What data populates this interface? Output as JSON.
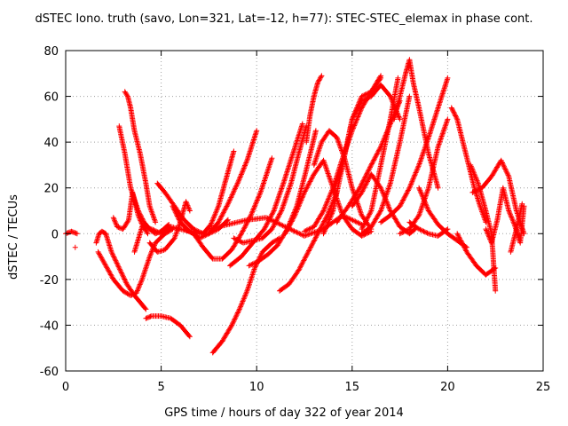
{
  "chart_data": {
    "type": "scatter",
    "title": "dSTEC Iono. truth (savo, Lon=321, Lat=-12, h=77): STEC-STEC_elemax in phase cont.",
    "xlabel": "GPS time / hours of day 322 of year 2014",
    "ylabel": "dSTEC  / TECUs",
    "xlim": [
      0,
      25
    ],
    "ylim": [
      -60,
      80
    ],
    "xticks": [
      0,
      5,
      10,
      15,
      20,
      25
    ],
    "yticks": [
      -60,
      -40,
      -20,
      0,
      20,
      40,
      60,
      80
    ],
    "grid": true,
    "marker": "+",
    "color": "#ff0000",
    "series": [
      {
        "x": [
          0.0,
          0.3,
          0.6
        ],
        "y": [
          0,
          1,
          0
        ]
      },
      {
        "x": [
          0.5
        ],
        "y": [
          -6
        ]
      },
      {
        "x": [
          1.6,
          1.75,
          1.9,
          2.1,
          2.4,
          2.8,
          3.2,
          3.6,
          3.9,
          4.2
        ],
        "y": [
          -4,
          0,
          1,
          0,
          -8,
          -15,
          -22,
          -27,
          -30,
          -33
        ]
      },
      {
        "x": [
          4.2,
          4.5,
          5.0,
          5.5,
          6.0,
          6.5
        ],
        "y": [
          -37,
          -36,
          -36,
          -37,
          -40,
          -45
        ]
      },
      {
        "x": [
          1.7,
          2.5,
          3.0,
          3.4,
          3.7,
          4.0,
          4.4,
          4.7,
          5.2,
          5.6
        ],
        "y": [
          -8,
          -20,
          -25,
          -27,
          -26,
          -20,
          -10,
          -4,
          0,
          2
        ]
      },
      {
        "x": [
          2.5,
          2.7,
          3.0,
          3.3,
          3.5,
          3.8,
          4.0,
          4.3
        ],
        "y": [
          7,
          3,
          2,
          6,
          18,
          8,
          4,
          0
        ]
      },
      {
        "x": [
          2.8,
          3.1,
          3.4,
          3.8,
          4.1,
          4.4,
          4.7,
          5.0,
          5.4
        ],
        "y": [
          47,
          35,
          20,
          10,
          5,
          2,
          0,
          1,
          4
        ]
      },
      {
        "x": [
          3.1,
          3.25,
          3.4,
          3.6,
          3.9,
          4.2,
          4.4,
          4.7
        ],
        "y": [
          62,
          60,
          55,
          45,
          35,
          22,
          12,
          5
        ]
      },
      {
        "x": [
          3.6,
          4.0,
          4.5,
          5.0,
          5.5,
          6.0,
          6.5,
          7.0,
          7.5,
          8.0,
          8.5
        ],
        "y": [
          -8,
          3,
          2,
          0,
          3,
          2,
          1,
          0,
          0,
          2,
          6
        ]
      },
      {
        "x": [
          4.8,
          5.2,
          5.7,
          6.2,
          6.7,
          7.2,
          7.6,
          8.0,
          8.4,
          8.8
        ],
        "y": [
          22,
          18,
          12,
          6,
          2,
          0,
          4,
          12,
          24,
          36
        ]
      },
      {
        "x": [
          4.4,
          4.8,
          5.2,
          5.7,
          6.0,
          6.3,
          6.5
        ],
        "y": [
          -4,
          -8,
          -7,
          -2,
          5,
          14,
          10
        ]
      },
      {
        "x": [
          5.6,
          6.0,
          6.5,
          7.0,
          7.5,
          8.0,
          8.5,
          9.0,
          9.5,
          10.0
        ],
        "y": [
          12,
          5,
          1,
          -2,
          0,
          5,
          13,
          22,
          32,
          45
        ]
      },
      {
        "x": [
          6.2,
          6.7,
          7.2,
          7.7,
          8.2,
          8.7,
          9.2,
          9.7,
          10.2,
          10.8
        ],
        "y": [
          2,
          0,
          -6,
          -11,
          -11,
          -7,
          0,
          8,
          18,
          33
        ]
      },
      {
        "x": [
          7.7,
          8.2,
          8.7,
          9.1,
          9.5,
          9.9,
          10.3,
          10.8,
          11.2
        ],
        "y": [
          -52,
          -47,
          -40,
          -33,
          -25,
          -15,
          -8,
          -4,
          -2
        ]
      },
      {
        "x": [
          8.6,
          9.2,
          9.8,
          10.4,
          10.9,
          11.4,
          11.9,
          12.4
        ],
        "y": [
          -14,
          -10,
          -4,
          2,
          10,
          22,
          35,
          48
        ]
      },
      {
        "x": [
          8.8,
          9.3,
          9.8,
          10.3,
          10.8,
          11.3,
          11.8,
          12.2,
          12.6
        ],
        "y": [
          -2,
          -4,
          -3,
          -2,
          2,
          10,
          22,
          35,
          47
        ]
      },
      {
        "x": [
          9.6,
          10.1,
          10.6,
          11.1,
          11.6,
          12.1,
          12.6,
          13.1
        ],
        "y": [
          -14,
          -12,
          -9,
          -5,
          2,
          12,
          28,
          45
        ]
      },
      {
        "x": [
          11.2,
          11.7,
          12.2,
          12.7,
          13.2,
          13.7,
          14.2
        ],
        "y": [
          -25,
          -22,
          -16,
          -8,
          0,
          8,
          18
        ]
      },
      {
        "x": [
          12.6,
          12.8,
          13.0,
          13.2,
          13.4
        ],
        "y": [
          40,
          52,
          60,
          66,
          69
        ]
      },
      {
        "x": [
          7.5,
          8.5,
          9.5,
          10.5,
          11.5,
          12.5,
          13.5,
          14.5,
          15.5
        ],
        "y": [
          2,
          4,
          6,
          7,
          3,
          -1,
          2,
          8,
          4
        ]
      },
      {
        "x": [
          11.5,
          12.0,
          12.5,
          13.0,
          13.5,
          14.0,
          14.5,
          15.0,
          15.5,
          16.0
        ],
        "y": [
          0,
          8,
          18,
          26,
          32,
          20,
          8,
          2,
          -1,
          1
        ]
      },
      {
        "x": [
          12.5,
          13.0,
          13.5,
          14.0,
          14.5,
          15.0,
          15.5,
          16.0,
          16.5
        ],
        "y": [
          1,
          3,
          10,
          20,
          33,
          45,
          55,
          62,
          68
        ]
      },
      {
        "x": [
          13.0,
          13.4,
          13.8,
          14.2,
          14.6,
          15.0,
          15.5,
          16.0
        ],
        "y": [
          30,
          40,
          45,
          42,
          33,
          20,
          8,
          2
        ]
      },
      {
        "x": [
          13.5,
          14.0,
          14.5,
          15.0,
          15.5,
          16.0,
          16.5
        ],
        "y": [
          0,
          10,
          30,
          50,
          60,
          62,
          69
        ]
      },
      {
        "x": [
          14.0,
          14.5,
          15.0,
          15.5,
          16.0,
          16.5,
          17.0,
          17.5
        ],
        "y": [
          18,
          30,
          50,
          58,
          60,
          65,
          60,
          50
        ]
      },
      {
        "x": [
          14.2,
          14.8,
          15.4,
          16.0,
          16.5,
          17.0,
          17.5
        ],
        "y": [
          5,
          12,
          20,
          30,
          38,
          48,
          58
        ]
      },
      {
        "x": [
          15.5,
          16.0,
          16.5,
          17.0,
          17.4
        ],
        "y": [
          2,
          10,
          30,
          50,
          68
        ]
      },
      {
        "x": [
          15.0,
          15.5,
          16.0,
          16.5,
          17.0,
          17.5,
          18.0,
          18.3
        ],
        "y": [
          12,
          18,
          26,
          20,
          10,
          3,
          0,
          2
        ]
      },
      {
        "x": [
          15.5,
          16.0,
          16.5,
          17.0,
          17.5,
          18.0
        ],
        "y": [
          0,
          3,
          10,
          22,
          40,
          60
        ]
      },
      {
        "x": [
          17.2,
          17.5,
          17.8,
          18.0,
          18.2,
          18.5,
          19.0,
          19.5
        ],
        "y": [
          50,
          60,
          70,
          76,
          66,
          55,
          35,
          20
        ]
      },
      {
        "x": [
          16.5,
          17.0,
          17.5,
          18.0,
          18.5,
          19.0,
          19.5,
          20.0
        ],
        "y": [
          5,
          8,
          12,
          20,
          30,
          42,
          55,
          68
        ]
      },
      {
        "x": [
          17.5,
          18.0,
          18.5,
          19.0,
          19.5,
          20.0
        ],
        "y": [
          0,
          2,
          8,
          20,
          38,
          50
        ]
      },
      {
        "x": [
          18.0,
          18.5,
          19.0,
          19.5,
          20.0
        ],
        "y": [
          5,
          2,
          0,
          -1,
          2
        ]
      },
      {
        "x": [
          18.5,
          19.0,
          19.5,
          20.0,
          20.5,
          21.0
        ],
        "y": [
          20,
          10,
          4,
          0,
          -3,
          -6
        ]
      },
      {
        "x": [
          20.2,
          20.5,
          20.8,
          21.1,
          21.4,
          21.7,
          22.0
        ],
        "y": [
          55,
          50,
          40,
          30,
          20,
          12,
          5
        ]
      },
      {
        "x": [
          20.5,
          21.0,
          21.5,
          22.0,
          22.5
        ],
        "y": [
          0,
          -8,
          -14,
          -18,
          -15
        ]
      },
      {
        "x": [
          21.2,
          21.6,
          22.0,
          22.3,
          22.5
        ],
        "y": [
          30,
          22,
          10,
          0,
          -25
        ]
      },
      {
        "x": [
          21.3,
          21.8,
          22.3,
          22.8,
          23.2,
          23.6,
          24.0
        ],
        "y": [
          18,
          20,
          25,
          32,
          25,
          10,
          0
        ]
      },
      {
        "x": [
          22.0,
          22.3,
          22.6,
          22.9,
          23.2,
          23.5,
          23.8,
          24.0
        ],
        "y": [
          2,
          -4,
          6,
          20,
          10,
          4,
          -4,
          12
        ]
      },
      {
        "x": [
          23.3,
          23.6,
          23.9
        ],
        "y": [
          -8,
          2,
          13
        ]
      }
    ]
  }
}
